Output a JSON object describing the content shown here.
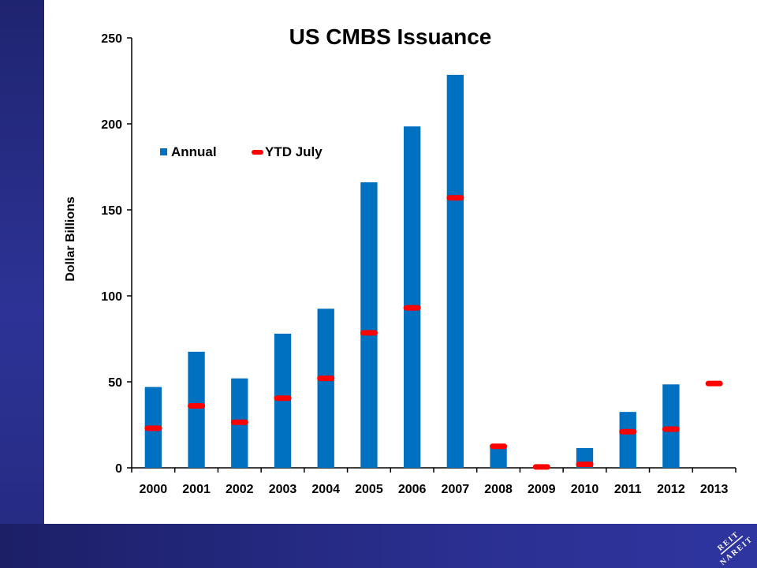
{
  "chart_data": {
    "type": "bar",
    "title": "US CMBS Issuance",
    "xlabel": "",
    "ylabel": "Dollar Billions",
    "ylim": [
      0,
      250
    ],
    "yticks": [
      0,
      50,
      100,
      150,
      200,
      250
    ],
    "categories": [
      "2000",
      "2001",
      "2002",
      "2003",
      "2004",
      "2005",
      "2006",
      "2007",
      "2008",
      "2009",
      "2010",
      "2011",
      "2012",
      "2013"
    ],
    "series": [
      {
        "name": "Annual",
        "type": "bar",
        "color": "#0070c0",
        "values": [
          47,
          67.5,
          52,
          78,
          92.5,
          166,
          198.5,
          228.5,
          12,
          1,
          11.5,
          32.5,
          48.5,
          null
        ]
      },
      {
        "name": "YTD July",
        "type": "marker",
        "color": "#ff0000",
        "values": [
          23,
          36,
          26.5,
          40.5,
          52,
          78.5,
          93,
          157,
          12.5,
          0.5,
          2,
          21,
          22.5,
          49
        ]
      }
    ],
    "grid": false,
    "legend": "top-left"
  },
  "logo": {
    "text": "REIT NAREIT",
    "color": "#ffffff"
  }
}
